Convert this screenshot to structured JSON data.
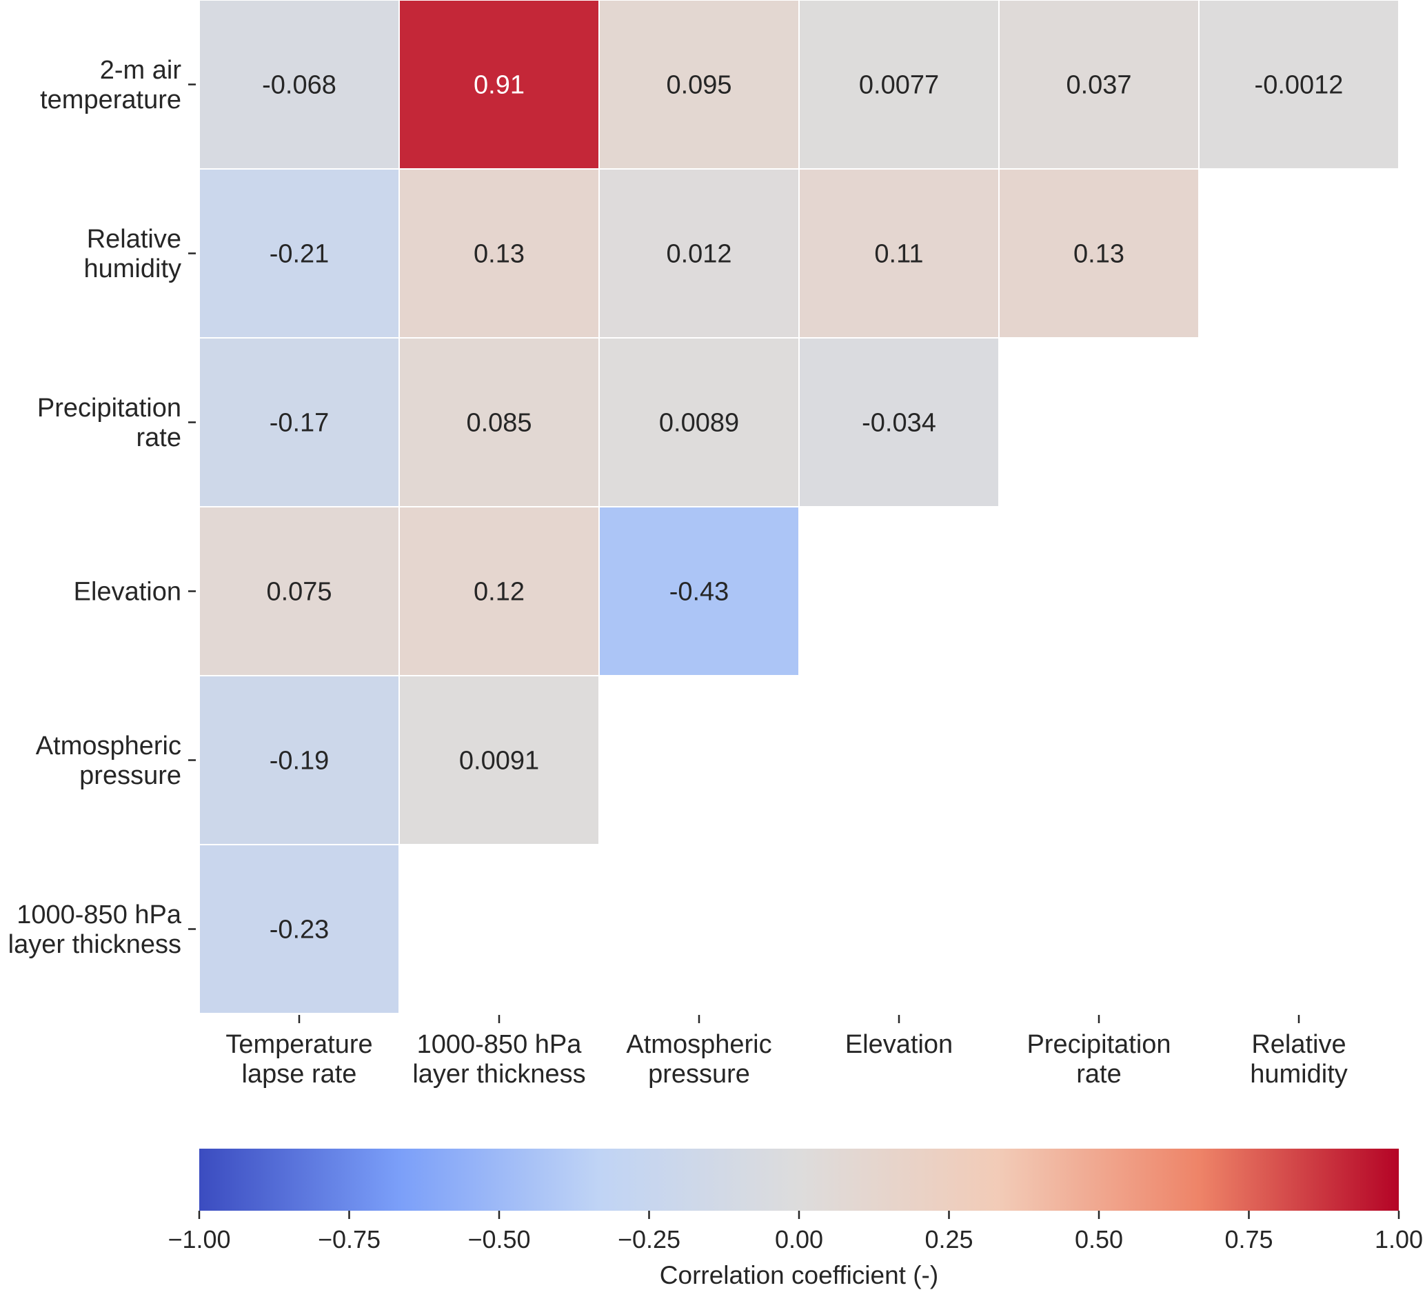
{
  "chart_data": {
    "type": "heatmap",
    "title": "",
    "row_labels": [
      [
        "2-m air",
        "temperature"
      ],
      [
        "Relative",
        "humidity"
      ],
      [
        "Precipitation",
        "rate"
      ],
      [
        "Elevation"
      ],
      [
        "Atmospheric",
        "pressure"
      ],
      [
        "1000-850 hPa",
        "layer thickness"
      ]
    ],
    "col_labels": [
      [
        "Temperature",
        "lapse rate"
      ],
      [
        "1000-850 hPa",
        "layer thickness"
      ],
      [
        "Atmospheric",
        "pressure"
      ],
      [
        "Elevation"
      ],
      [
        "Precipitation",
        "rate"
      ],
      [
        "Relative",
        "humidity"
      ]
    ],
    "values": [
      [
        -0.068,
        0.91,
        0.095,
        0.0077,
        0.037,
        -0.0012
      ],
      [
        -0.21,
        0.13,
        0.012,
        0.11,
        0.13,
        null
      ],
      [
        -0.17,
        0.085,
        0.0089,
        -0.034,
        null,
        null
      ],
      [
        0.075,
        0.12,
        -0.43,
        null,
        null,
        null
      ],
      [
        -0.19,
        0.0091,
        null,
        null,
        null,
        null
      ],
      [
        -0.23,
        null,
        null,
        null,
        null,
        null
      ]
    ],
    "value_labels": [
      [
        "-0.068",
        "0.91",
        "0.095",
        "0.0077",
        "0.037",
        "-0.0012"
      ],
      [
        "-0.21",
        "0.13",
        "0.012",
        "0.11",
        "0.13",
        ""
      ],
      [
        "-0.17",
        "0.085",
        "0.0089",
        "-0.034",
        "",
        ""
      ],
      [
        "0.075",
        "0.12",
        "-0.43",
        "",
        "",
        ""
      ],
      [
        "-0.19",
        "0.0091",
        "",
        "",
        "",
        ""
      ],
      [
        "-0.23",
        "",
        "",
        "",
        "",
        ""
      ]
    ],
    "colormap": "coolwarm",
    "colormap_stops": [
      "#3b4cc0",
      "#7b9ff9",
      "#c0d4f5",
      "#dddcdc",
      "#f2cbb7",
      "#ee8468",
      "#b40426"
    ],
    "vmin": -1.0,
    "vmax": 1.0,
    "colorbar": {
      "ticks": [
        -1.0,
        -0.75,
        -0.5,
        -0.25,
        0.0,
        0.25,
        0.5,
        0.75,
        1.0
      ],
      "tick_labels": [
        "−1.00",
        "−0.75",
        "−0.50",
        "−0.25",
        "0.00",
        "0.25",
        "0.50",
        "0.75",
        "1.00"
      ],
      "label": "Correlation coefficient (-)",
      "orientation": "horizontal"
    }
  }
}
